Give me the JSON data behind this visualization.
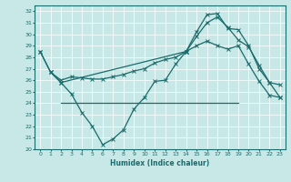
{
  "xlabel": "Humidex (Indice chaleur)",
  "background_color": "#c8e8e8",
  "grid_color": "#ffffff",
  "line_color": "#1a6b6b",
  "xlim": [
    -0.5,
    23.5
  ],
  "ylim": [
    20,
    32.5
  ],
  "xticks": [
    0,
    1,
    2,
    3,
    4,
    5,
    6,
    7,
    8,
    9,
    10,
    11,
    12,
    13,
    14,
    15,
    16,
    17,
    18,
    19,
    20,
    21,
    22,
    23
  ],
  "yticks": [
    20,
    21,
    22,
    23,
    24,
    25,
    26,
    27,
    28,
    29,
    30,
    31,
    32
  ],
  "line1_x": [
    0,
    1,
    2,
    3,
    4,
    5,
    6,
    7,
    8,
    9,
    10,
    11,
    12,
    13,
    14,
    15,
    16,
    17,
    18,
    19,
    20,
    21,
    22,
    23
  ],
  "line1_y": [
    28.5,
    26.7,
    25.8,
    24.8,
    23.2,
    22.0,
    20.4,
    20.9,
    21.7,
    23.5,
    24.5,
    25.9,
    26.0,
    27.4,
    28.5,
    29.0,
    29.4,
    29.0,
    28.7,
    29.0,
    27.4,
    25.9,
    24.7,
    24.5
  ],
  "line2_x": [
    1,
    2,
    3,
    4,
    5,
    6,
    7,
    8,
    9,
    10,
    11,
    12,
    13,
    14,
    15,
    16,
    17,
    18,
    19,
    20,
    21,
    22,
    23
  ],
  "line2_y": [
    26.7,
    26.0,
    26.3,
    26.2,
    26.1,
    26.1,
    26.3,
    26.5,
    26.8,
    27.0,
    27.5,
    27.8,
    28.0,
    28.5,
    29.8,
    31.0,
    31.5,
    30.6,
    29.5,
    28.9,
    27.3,
    25.8,
    25.6
  ],
  "line3_x": [
    2,
    19
  ],
  "line3_y": [
    24.0,
    24.0
  ],
  "line4_x": [
    0,
    1,
    2,
    14,
    15,
    16,
    17,
    18,
    19,
    20,
    21,
    22,
    23
  ],
  "line4_y": [
    28.5,
    26.7,
    25.8,
    28.5,
    30.2,
    31.7,
    31.8,
    30.5,
    30.4,
    29.0,
    27.0,
    25.8,
    24.5
  ]
}
